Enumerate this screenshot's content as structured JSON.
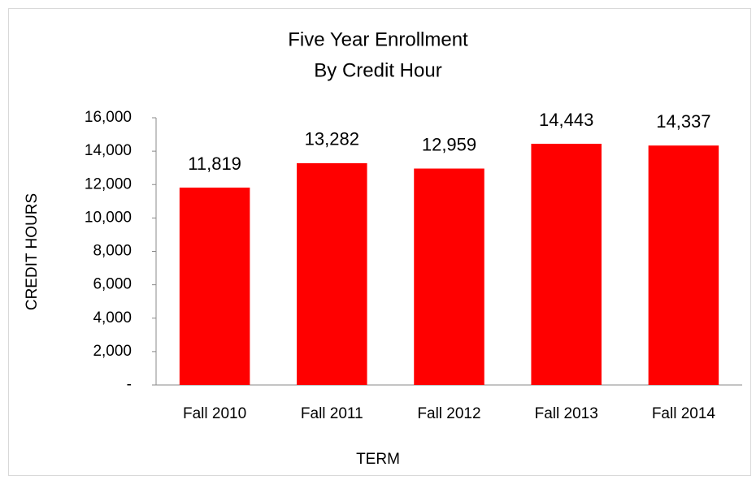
{
  "chart_data": {
    "type": "bar",
    "title": "Five Year Enrollment",
    "subtitle": "By Credit Hour",
    "x_label": "TERM",
    "y_label": "CREDIT HOURS",
    "categories": [
      "Fall 2010",
      "Fall 2011",
      "Fall 2012",
      "Fall 2013",
      "Fall 2014"
    ],
    "values": [
      11819,
      13282,
      12959,
      14443,
      14337
    ],
    "value_labels": [
      "11,819",
      "13,282",
      "12,959",
      "14,443",
      "14,337"
    ],
    "color": "#ff0000",
    "ylim": [
      0,
      16000
    ],
    "yticks": [
      {
        "value": 0,
        "label": "-"
      },
      {
        "value": 2000,
        "label": "2,000"
      },
      {
        "value": 4000,
        "label": "4,000"
      },
      {
        "value": 6000,
        "label": "6,000"
      },
      {
        "value": 8000,
        "label": "8,000"
      },
      {
        "value": 10000,
        "label": "10,000"
      },
      {
        "value": 12000,
        "label": "12,000"
      },
      {
        "value": 14000,
        "label": "14,000"
      },
      {
        "value": 16000,
        "label": "16,000"
      }
    ],
    "grid": false
  }
}
